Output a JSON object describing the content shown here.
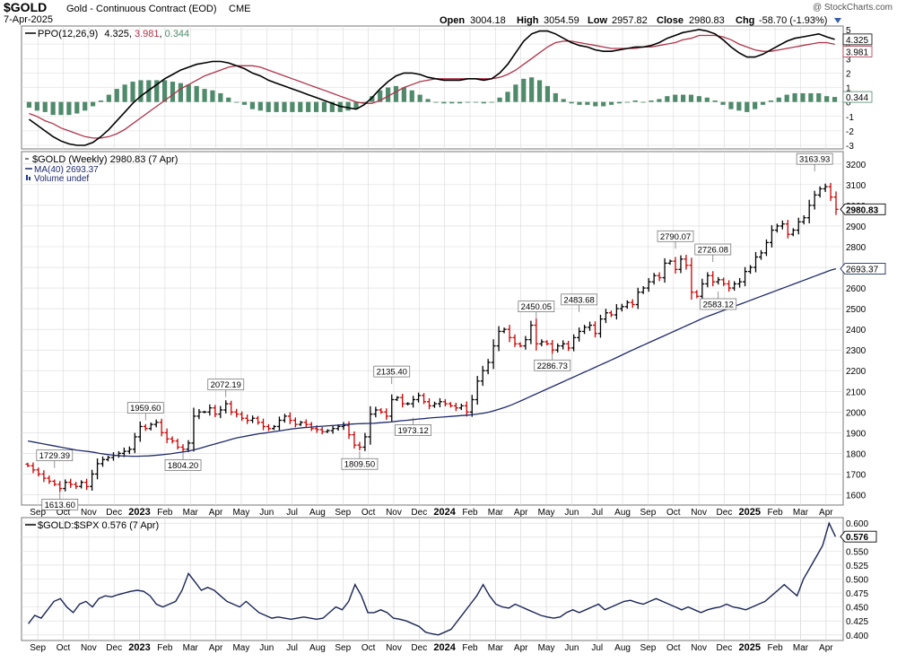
{
  "header": {
    "symbol": "$GOLD",
    "description": "Gold - Continuous Contract (EOD)",
    "exchange": "CME",
    "date": "7-Apr-2025",
    "watermark": "@ StockCharts.com",
    "open_label": "Open",
    "open_value": "3004.18",
    "high_label": "High",
    "high_value": "3054.59",
    "low_label": "Low",
    "low_value": "2957.82",
    "close_label": "Close",
    "close_value": "2980.83",
    "chg_label": "Chg",
    "chg_value": "-58.70 (-1.93%)",
    "chg_icon": "triangle-down-icon"
  },
  "colors": {
    "up_bar": "#000000",
    "down_bar": "#cc0000",
    "ppo_line": "#000000",
    "signal_line": "#b0334a",
    "histogram": "#4f8a6b",
    "ma_line": "#1f2a6b",
    "ratio_line": "#1a2555",
    "grid": "#d9d9d9"
  },
  "x_axis_labels": [
    "Sep",
    "Oct",
    "Nov",
    "Dec",
    "2023",
    "Feb",
    "Mar",
    "Apr",
    "May",
    "Jun",
    "Jul",
    "Aug",
    "Sep",
    "Oct",
    "Nov",
    "Dec",
    "2024",
    "Feb",
    "Mar",
    "Apr",
    "May",
    "Jun",
    "Jul",
    "Aug",
    "Sep",
    "Oct",
    "Nov",
    "Dec",
    "2025",
    "Feb",
    "Mar",
    "Apr"
  ],
  "chart_data": [
    {
      "panel": "ppo",
      "type": "line",
      "legend_label": "PPO(12,26,9)",
      "legend_values": {
        "ppo": "4.325",
        "signal": "3.981",
        "histogram": "0.344"
      },
      "ylim": [
        -3,
        5
      ],
      "y_ticks": [
        -3,
        -2,
        -1,
        0,
        1,
        2,
        3,
        4,
        5
      ],
      "last_value_labels": [
        "4.325",
        "3.981",
        "0.344"
      ],
      "grid": true,
      "series": [
        {
          "name": "ppo",
          "style": "line",
          "values": [
            -1.2,
            -1.6,
            -2.0,
            -2.4,
            -2.7,
            -2.9,
            -3.0,
            -3.0,
            -2.8,
            -2.4,
            -1.9,
            -1.3,
            -0.7,
            -0.1,
            0.4,
            0.8,
            1.2,
            1.6,
            1.9,
            2.2,
            2.4,
            2.6,
            2.7,
            2.8,
            2.8,
            2.7,
            2.5,
            2.3,
            2.0,
            1.8,
            1.5,
            1.3,
            1.1,
            0.9,
            0.7,
            0.5,
            0.3,
            0.1,
            -0.1,
            -0.3,
            -0.4,
            -0.5,
            -0.2,
            0.3,
            0.9,
            1.4,
            1.8,
            2.0,
            2.0,
            1.9,
            1.7,
            1.6,
            1.5,
            1.5,
            1.5,
            1.6,
            1.6,
            1.5,
            1.6,
            2.0,
            2.6,
            3.4,
            4.2,
            4.7,
            4.9,
            4.9,
            4.7,
            4.4,
            4.1,
            3.9,
            3.8,
            3.6,
            3.5,
            3.5,
            3.6,
            3.7,
            3.8,
            3.8,
            3.9,
            4.1,
            4.4,
            4.6,
            4.8,
            4.9,
            5.0,
            4.9,
            4.7,
            4.3,
            3.8,
            3.4,
            3.1,
            3.1,
            3.3,
            3.6,
            3.9,
            4.2,
            4.4,
            4.5,
            4.6,
            4.7,
            4.5,
            4.325
          ]
        },
        {
          "name": "signal",
          "style": "line",
          "values": [
            -0.8,
            -1.0,
            -1.3,
            -1.5,
            -1.8,
            -2.0,
            -2.2,
            -2.4,
            -2.5,
            -2.5,
            -2.4,
            -2.2,
            -1.9,
            -1.5,
            -1.1,
            -0.7,
            -0.3,
            0.1,
            0.5,
            0.9,
            1.2,
            1.5,
            1.8,
            2.0,
            2.2,
            2.4,
            2.5,
            2.5,
            2.5,
            2.4,
            2.2,
            2.0,
            1.8,
            1.6,
            1.4,
            1.2,
            1.0,
            0.8,
            0.6,
            0.4,
            0.2,
            0.0,
            -0.1,
            -0.1,
            0.1,
            0.4,
            0.7,
            1.0,
            1.2,
            1.4,
            1.5,
            1.6,
            1.6,
            1.6,
            1.6,
            1.6,
            1.6,
            1.6,
            1.6,
            1.7,
            1.9,
            2.2,
            2.6,
            3.0,
            3.4,
            3.8,
            4.1,
            4.2,
            4.2,
            4.1,
            4.0,
            3.9,
            3.8,
            3.7,
            3.7,
            3.7,
            3.7,
            3.8,
            3.8,
            3.9,
            4.0,
            4.1,
            4.3,
            4.4,
            4.6,
            4.6,
            4.6,
            4.5,
            4.3,
            4.0,
            3.8,
            3.6,
            3.5,
            3.5,
            3.6,
            3.7,
            3.8,
            3.9,
            4.0,
            4.1,
            4.1,
            3.981
          ]
        }
      ]
    },
    {
      "panel": "price",
      "type": "ohlc",
      "legend_label": "$GOLD (Weekly) 2980.83 (7 Apr)",
      "ma_label": "MA(40) 2693.37",
      "volume_label": "Volume undef",
      "ylim": [
        1550,
        3260
      ],
      "y_ticks": [
        1600,
        1700,
        1800,
        1900,
        2000,
        2100,
        2200,
        2300,
        2400,
        2500,
        2600,
        2700,
        2800,
        2900,
        3000,
        3100,
        3200
      ],
      "last_value_labels": [
        "2980.83",
        "2693.37"
      ],
      "grid": true,
      "closes": [
        1740,
        1720,
        1700,
        1680,
        1665,
        1650,
        1630,
        1660,
        1650,
        1640,
        1660,
        1640,
        1700,
        1750,
        1770,
        1780,
        1790,
        1800,
        1810,
        1820,
        1880,
        1930,
        1920,
        1940,
        1950,
        1900,
        1870,
        1860,
        1830,
        1820,
        1850,
        1980,
        2000,
        2000,
        2020,
        1990,
        2010,
        2040,
        2000,
        1990,
        1970,
        1960,
        1970,
        1950,
        1930,
        1920,
        1930,
        1960,
        1980,
        1960,
        1940,
        1950,
        1940,
        1920,
        1915,
        1905,
        1910,
        1920,
        1930,
        1935,
        1890,
        1840,
        1830,
        1880,
        1990,
        2010,
        2000,
        1980,
        2060,
        2070,
        2040,
        2040,
        2060,
        2080,
        2050,
        2030,
        2040,
        2050,
        2040,
        2030,
        2020,
        2030,
        2000,
        2060,
        2150,
        2200,
        2240,
        2320,
        2390,
        2400,
        2360,
        2330,
        2320,
        2350,
        2420,
        2330,
        2340,
        2330,
        2300,
        2320,
        2330,
        2310,
        2360,
        2390,
        2410,
        2420,
        2380,
        2450,
        2480,
        2470,
        2500,
        2510,
        2530,
        2520,
        2580,
        2600,
        2630,
        2660,
        2650,
        2720,
        2730,
        2690,
        2740,
        2710,
        2580,
        2560,
        2620,
        2660,
        2630,
        2640,
        2620,
        2600,
        2620,
        2630,
        2680,
        2700,
        2750,
        2770,
        2820,
        2880,
        2900,
        2910,
        2860,
        2880,
        2920,
        2940,
        3000,
        3050,
        3080,
        3090,
        3040,
        2980.83
      ],
      "ma_values": [
        1860,
        1855,
        1850,
        1845,
        1840,
        1835,
        1830,
        1825,
        1820,
        1815,
        1812,
        1809,
        1805,
        1800,
        1796,
        1793,
        1790,
        1788,
        1787,
        1786,
        1786,
        1787,
        1788,
        1790,
        1792,
        1795,
        1798,
        1802,
        1806,
        1810,
        1816,
        1822,
        1830,
        1838,
        1845,
        1853,
        1860,
        1868,
        1875,
        1880,
        1885,
        1890,
        1895,
        1898,
        1902,
        1906,
        1910,
        1914,
        1918,
        1921,
        1924,
        1926,
        1928,
        1930,
        1932,
        1934,
        1936,
        1938,
        1940,
        1942,
        1943,
        1944,
        1945,
        1946,
        1948,
        1950,
        1952,
        1955,
        1958,
        1960,
        1963,
        1966,
        1968,
        1971,
        1973,
        1975,
        1977,
        1979,
        1981,
        1983,
        1985,
        1988,
        1991,
        1995,
        2000,
        2008,
        2016,
        2025,
        2035,
        2046,
        2058,
        2070,
        2082,
        2094,
        2106,
        2118,
        2130,
        2142,
        2154,
        2166,
        2178,
        2190,
        2202,
        2214,
        2226,
        2238,
        2250,
        2262,
        2275,
        2288,
        2300,
        2312,
        2324,
        2336,
        2348,
        2360,
        2372,
        2384,
        2396,
        2408,
        2420,
        2432,
        2444,
        2456,
        2466,
        2476,
        2486,
        2496,
        2506,
        2516,
        2526,
        2536,
        2546,
        2556,
        2566,
        2576,
        2586,
        2596,
        2606,
        2616,
        2626,
        2636,
        2646,
        2656,
        2666,
        2676,
        2686,
        2693.37
      ],
      "annotations": [
        {
          "text": "1729.39",
          "i": 5,
          "value": 1729.39,
          "position": "above"
        },
        {
          "text": "1613.60",
          "i": 6,
          "value": 1613.6,
          "position": "below"
        },
        {
          "text": "1959.60",
          "i": 22,
          "value": 1959.6,
          "position": "above"
        },
        {
          "text": "1804.20",
          "i": 29,
          "value": 1804.2,
          "position": "below"
        },
        {
          "text": "2072.19",
          "i": 37,
          "value": 2072.19,
          "position": "above"
        },
        {
          "text": "1809.50",
          "i": 62,
          "value": 1809.5,
          "position": "below"
        },
        {
          "text": "2135.40",
          "i": 68,
          "value": 2135.4,
          "position": "above"
        },
        {
          "text": "1973.12",
          "i": 72,
          "value": 1973.12,
          "position": "below"
        },
        {
          "text": "2450.05",
          "i": 95,
          "value": 2450.05,
          "position": "above"
        },
        {
          "text": "2286.73",
          "i": 98,
          "value": 2286.73,
          "position": "below"
        },
        {
          "text": "2483.68",
          "i": 103,
          "value": 2483.68,
          "position": "above"
        },
        {
          "text": "2790.07",
          "i": 121,
          "value": 2790.07,
          "position": "above"
        },
        {
          "text": "2726.08",
          "i": 128,
          "value": 2726.08,
          "position": "above"
        },
        {
          "text": "2583.12",
          "i": 129,
          "value": 2583.12,
          "position": "below"
        },
        {
          "text": "3163.93",
          "i": 147,
          "value": 3163.93,
          "position": "above"
        }
      ]
    },
    {
      "panel": "ratio",
      "type": "line",
      "legend_label": "$GOLD:$SPX 0.576 (7 Apr)",
      "ylim": [
        0.39,
        0.61
      ],
      "y_ticks": [
        0.4,
        0.425,
        0.45,
        0.475,
        0.5,
        0.525,
        0.55,
        0.575,
        0.6
      ],
      "y_tick_labels": [
        "0.400",
        "0.425",
        "0.450",
        "0.475",
        "0.500",
        "0.525",
        "0.550",
        "0.575",
        "0.600"
      ],
      "last_value_labels": [
        "0.576"
      ],
      "grid": true,
      "series": [
        {
          "name": "ratio",
          "values": [
            0.42,
            0.435,
            0.43,
            0.445,
            0.46,
            0.465,
            0.45,
            0.44,
            0.455,
            0.46,
            0.45,
            0.465,
            0.47,
            0.468,
            0.472,
            0.475,
            0.478,
            0.48,
            0.478,
            0.47,
            0.455,
            0.45,
            0.455,
            0.46,
            0.48,
            0.51,
            0.495,
            0.48,
            0.485,
            0.48,
            0.47,
            0.46,
            0.455,
            0.45,
            0.46,
            0.45,
            0.44,
            0.435,
            0.43,
            0.432,
            0.43,
            0.428,
            0.43,
            0.432,
            0.43,
            0.428,
            0.43,
            0.44,
            0.45,
            0.445,
            0.46,
            0.49,
            0.47,
            0.44,
            0.44,
            0.445,
            0.44,
            0.43,
            0.428,
            0.425,
            0.42,
            0.415,
            0.405,
            0.402,
            0.4,
            0.405,
            0.41,
            0.425,
            0.44,
            0.455,
            0.47,
            0.49,
            0.47,
            0.455,
            0.45,
            0.448,
            0.455,
            0.45,
            0.445,
            0.44,
            0.435,
            0.432,
            0.43,
            0.432,
            0.44,
            0.445,
            0.44,
            0.445,
            0.45,
            0.455,
            0.445,
            0.45,
            0.455,
            0.46,
            0.462,
            0.458,
            0.455,
            0.46,
            0.465,
            0.46,
            0.455,
            0.45,
            0.445,
            0.45,
            0.445,
            0.44,
            0.445,
            0.448,
            0.45,
            0.455,
            0.45,
            0.448,
            0.445,
            0.45,
            0.455,
            0.46,
            0.47,
            0.48,
            0.49,
            0.48,
            0.47,
            0.5,
            0.52,
            0.54,
            0.56,
            0.6,
            0.576
          ]
        }
      ]
    }
  ]
}
